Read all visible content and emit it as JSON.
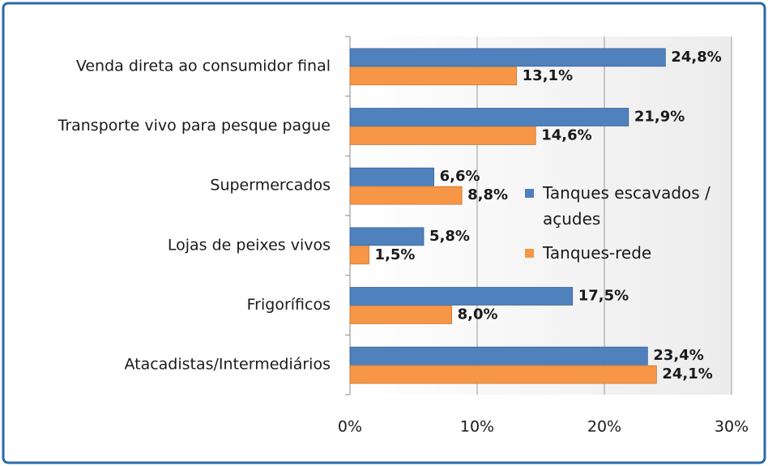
{
  "chart_data": {
    "type": "hbar",
    "categories": [
      "Venda direta ao consumidor final",
      "Transporte vivo para pesque pague",
      "Supermercados",
      "Lojas de peixes vivos",
      "Frigoríficos",
      "Atacadistas/Intermediários"
    ],
    "series": [
      {
        "name": "Tanques escavados / açudes",
        "color": "#4f81bd",
        "values": [
          24.8,
          21.9,
          6.6,
          5.8,
          17.5,
          23.4
        ],
        "value_labels": [
          "24,8%",
          "21,9%",
          "6,6%",
          "5,8%",
          "17,5%",
          "23,4%"
        ]
      },
      {
        "name": "Tanques-rede",
        "color": "#f79646",
        "values": [
          13.1,
          14.6,
          8.8,
          1.5,
          8.0,
          24.1
        ],
        "value_labels": [
          "13,1%",
          "14,6%",
          "8,8%",
          "1,5%",
          "8,0%",
          "24,1%"
        ]
      }
    ],
    "xlim": [
      0,
      30
    ],
    "xticks": [
      {
        "value": 0,
        "label": "0%"
      },
      {
        "value": 10,
        "label": "10%"
      },
      {
        "value": 20,
        "label": "20%"
      },
      {
        "value": 30,
        "label": "30%"
      }
    ],
    "grid": true
  }
}
